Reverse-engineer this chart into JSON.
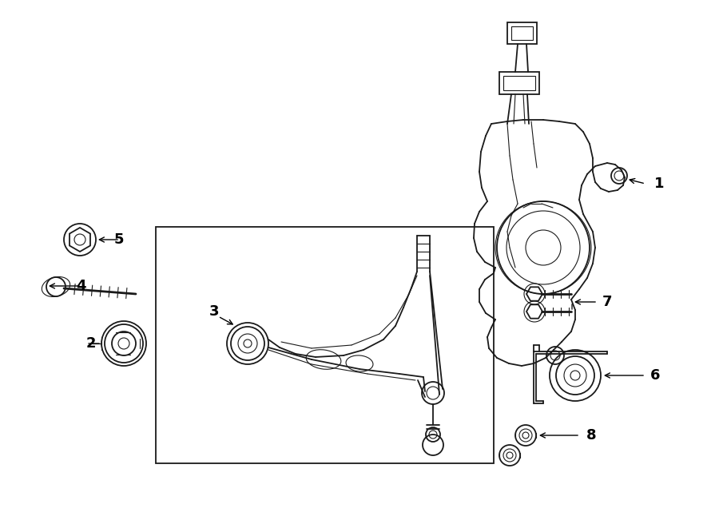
{
  "bg_color": "#ffffff",
  "line_color": "#1a1a1a",
  "lw": 1.3,
  "tlw": 0.8,
  "fig_w": 9.0,
  "fig_h": 6.61,
  "dpi": 100,
  "xlim": [
    0,
    900
  ],
  "ylim": [
    0,
    661
  ]
}
